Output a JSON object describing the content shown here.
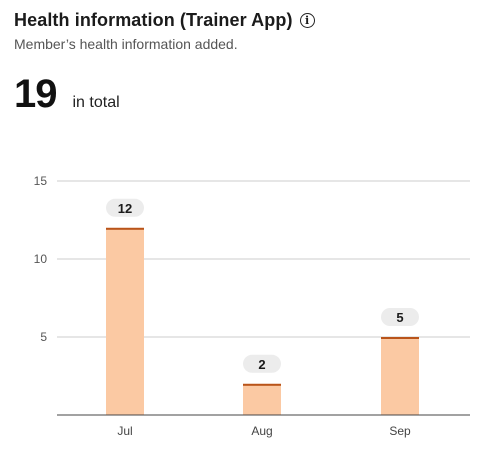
{
  "header": {
    "title": "Health information (Trainer App)",
    "info_icon": "info-icon",
    "subtitle": "Member’s health information added."
  },
  "summary": {
    "total": "19",
    "total_label": "in total"
  },
  "colors": {
    "bar_fill": "#fbc9a3",
    "bar_top": "#b9541a",
    "grid": "#cccccc",
    "axis": "#444444",
    "label_bg": "#ececec"
  },
  "chart_data": {
    "type": "bar",
    "categories": [
      "Jul",
      "Aug",
      "Sep"
    ],
    "values": [
      12,
      2,
      5
    ],
    "data_labels": [
      "12",
      "2",
      "5"
    ],
    "yticks": [
      5,
      10,
      15
    ],
    "ylim": [
      0,
      15
    ],
    "xlabel": "",
    "ylabel": "",
    "grid": true
  }
}
